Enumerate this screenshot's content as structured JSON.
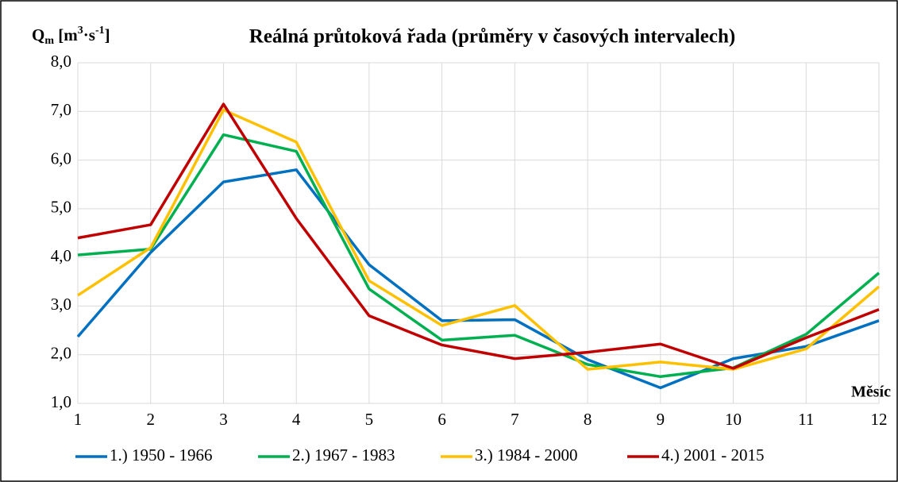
{
  "chart_data": {
    "type": "line",
    "title": "Reálná průtoková řada (průměry v časových intervalech)",
    "y_label": [
      "Q",
      "m",
      " [m",
      "3",
      "·s",
      "-1",
      "]"
    ],
    "x_label": "Měsíc",
    "x": [
      1,
      2,
      3,
      4,
      5,
      6,
      7,
      8,
      9,
      10,
      11,
      12
    ],
    "xlim": [
      1,
      12
    ],
    "xticks": [
      1,
      2,
      3,
      4,
      5,
      6,
      7,
      8,
      9,
      10,
      11,
      12
    ],
    "ylim": [
      1,
      8
    ],
    "yticks": [
      {
        "value": 1,
        "label": "1,0"
      },
      {
        "value": 2,
        "label": "2,0"
      },
      {
        "value": 3,
        "label": "3,0"
      },
      {
        "value": 4,
        "label": "4,0"
      },
      {
        "value": 5,
        "label": "5,0"
      },
      {
        "value": 6,
        "label": "6,0"
      },
      {
        "value": 7,
        "label": "7,0"
      },
      {
        "value": 8,
        "label": "8,0"
      }
    ],
    "grid": true,
    "legend": "bottom",
    "series": [
      {
        "name": "1.) 1950 - 1966",
        "color": "#0070c0",
        "values": [
          2.37,
          4.1,
          5.55,
          5.8,
          3.85,
          2.7,
          2.72,
          1.9,
          1.32,
          1.92,
          2.17,
          2.7
        ]
      },
      {
        "name": "2.) 1967 - 1983",
        "color": "#00b050",
        "values": [
          4.05,
          4.17,
          6.52,
          6.18,
          3.35,
          2.3,
          2.4,
          1.8,
          1.55,
          1.73,
          2.42,
          3.68
        ]
      },
      {
        "name": "3.) 1984 - 2000",
        "color": "#ffc000",
        "values": [
          3.22,
          4.2,
          7.03,
          6.37,
          3.52,
          2.6,
          3.01,
          1.7,
          1.85,
          1.7,
          2.12,
          3.4
        ]
      },
      {
        "name": "4.) 2001 - 2015",
        "color": "#c00000",
        "values": [
          4.4,
          4.67,
          7.15,
          4.8,
          2.8,
          2.2,
          1.92,
          2.05,
          2.22,
          1.72,
          2.35,
          2.93
        ]
      }
    ]
  }
}
